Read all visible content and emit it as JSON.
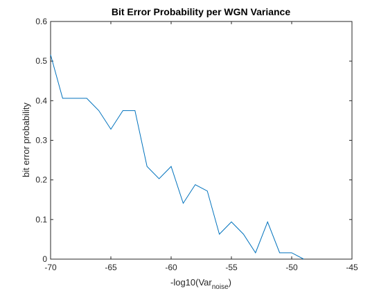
{
  "chart_data": {
    "type": "line",
    "title": "Bit Error Probability per WGN Variance",
    "xlabel_main": "-log10(Var",
    "xlabel_sub": "noise",
    "xlabel_close": ")",
    "ylabel": "bit error probability",
    "xlim": [
      -70,
      -45
    ],
    "ylim": [
      0,
      0.6
    ],
    "xticks": [
      -70,
      -65,
      -60,
      -55,
      -50,
      -45
    ],
    "yticks": [
      0,
      0.1,
      0.2,
      0.3,
      0.4,
      0.5,
      0.6
    ],
    "grid": false,
    "line_color": "#0072BD",
    "series": [
      {
        "x": [
          -70,
          -69,
          -68,
          -67,
          -66,
          -65,
          -64,
          -63,
          -62,
          -61,
          -60,
          -59,
          -58,
          -57,
          -56,
          -55,
          -54,
          -53,
          -52,
          -51,
          -50,
          -49
        ],
        "y": [
          0.516,
          0.406,
          0.406,
          0.406,
          0.375,
          0.328,
          0.375,
          0.375,
          0.234,
          0.203,
          0.234,
          0.141,
          0.188,
          0.172,
          0.063,
          0.094,
          0.063,
          0.016,
          0.094,
          0.016,
          0.016,
          0.0
        ]
      }
    ]
  }
}
